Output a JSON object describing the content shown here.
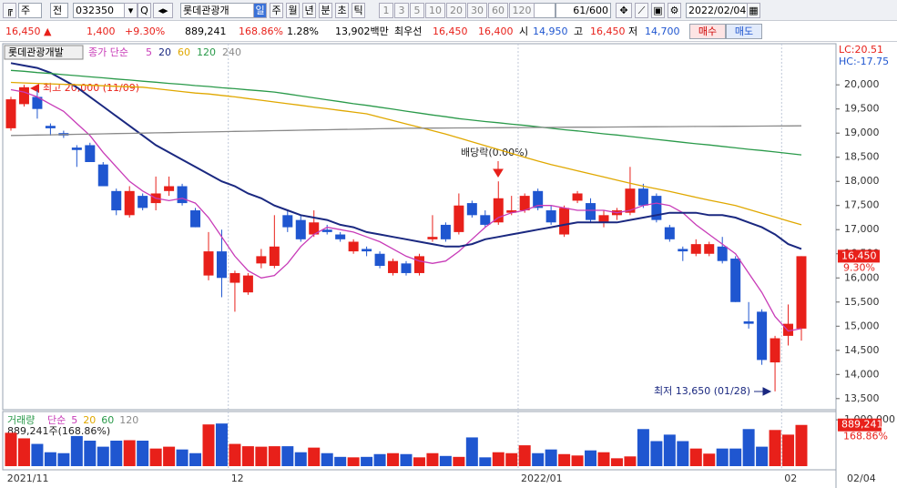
{
  "toolbar": {
    "market": "주",
    "type": "전",
    "code": "032350",
    "name": "롯데관광개",
    "periods": [
      "일",
      "주",
      "월",
      "년",
      "분",
      "초",
      "틱"
    ],
    "minutes": [
      "1",
      "3",
      "5",
      "10",
      "20",
      "30",
      "60",
      "120"
    ],
    "count": "61/600",
    "date": "2022/02/04"
  },
  "info": {
    "price": "16,450 ▲",
    "change": "1,400",
    "change_pct": "+9.30%",
    "volume": "889,241",
    "volume_ratio": "168.86%",
    "turnover": "1.28%",
    "amount": "13,902백만",
    "best_label": "최우선",
    "ask": "16,450",
    "bid": "16,400",
    "open_label": "시",
    "open": "14,950",
    "high_label": "고",
    "high": "16,450",
    "low_label": "저",
    "low": "14,700",
    "buy": "매수",
    "sell": "매도"
  },
  "chart_data": [
    {
      "type": "candlestick",
      "title": "롯데관광개발",
      "ma_label": "종가 단순",
      "lc": "LC:20.51",
      "hc": "HC:-17.75",
      "last_label": "16,450",
      "last_pct": "9.30%",
      "up_color": "#e8201a",
      "down_color": "#1f56d0",
      "annotations": [
        "최고 20,000 (11/09)",
        "배당락(0.00%)",
        "최저 13,650 (01/28)"
      ],
      "categories": [
        "2021/11",
        null,
        null,
        null,
        null,
        null,
        null,
        null,
        null,
        null,
        null,
        null,
        null,
        null,
        null,
        null,
        null,
        "12",
        null,
        null,
        null,
        null,
        null,
        null,
        null,
        null,
        null,
        null,
        null,
        null,
        null,
        null,
        null,
        null,
        null,
        null,
        null,
        null,
        null,
        "2022/01",
        null,
        null,
        null,
        null,
        null,
        null,
        null,
        null,
        null,
        null,
        null,
        null,
        null,
        null,
        null,
        null,
        null,
        null,
        null,
        "02",
        null
      ],
      "last_date": "02/04",
      "open": [
        19100,
        19600,
        19750,
        19150,
        19000,
        18700,
        18750,
        18350,
        17800,
        17300,
        17700,
        17550,
        17800,
        17900,
        17400,
        16050,
        16550,
        15900,
        15700,
        16300,
        16250,
        17300,
        17200,
        16900,
        17000,
        16900,
        16550,
        16600,
        16500,
        16100,
        16300,
        16100,
        16800,
        17100,
        16950,
        17550,
        17300,
        17150,
        17350,
        17400,
        17800,
        17400,
        16900,
        17600,
        17550,
        17150,
        17300,
        17350,
        17850,
        17700,
        17050,
        16600,
        16500,
        16500,
        16650,
        16400,
        15100,
        15300,
        14250,
        14800,
        14950
      ],
      "high": [
        19750,
        20000,
        19900,
        19200,
        19050,
        18750,
        18800,
        18400,
        17850,
        17900,
        17750,
        18100,
        18100,
        17950,
        17450,
        16950,
        17000,
        16150,
        16100,
        16600,
        17300,
        17400,
        17300,
        17400,
        17100,
        16950,
        16800,
        16650,
        16550,
        16400,
        16350,
        16500,
        17300,
        17150,
        17750,
        17600,
        17400,
        18000,
        17700,
        17750,
        17850,
        17500,
        17500,
        17800,
        17650,
        17400,
        17450,
        18300,
        17950,
        17750,
        17100,
        16650,
        16800,
        16750,
        16850,
        16450,
        15500,
        15350,
        14800,
        15450,
        16450
      ],
      "low": [
        19050,
        19550,
        19300,
        18950,
        18900,
        18300,
        18400,
        17900,
        17300,
        17250,
        17400,
        17400,
        17700,
        17500,
        17050,
        15950,
        15600,
        15300,
        15650,
        16200,
        16200,
        16950,
        16750,
        16850,
        16900,
        16750,
        16500,
        16450,
        16200,
        16050,
        16050,
        16050,
        16750,
        16750,
        16900,
        17250,
        17050,
        17100,
        17300,
        17350,
        17400,
        17100,
        16850,
        17550,
        17150,
        17050,
        17200,
        17300,
        17450,
        17150,
        16750,
        16350,
        16450,
        16450,
        16300,
        15500,
        14950,
        14200,
        13650,
        14600,
        14700
      ],
      "close": [
        19700,
        19950,
        19500,
        19100,
        18950,
        18650,
        18400,
        17900,
        17400,
        17800,
        17450,
        17750,
        17900,
        17550,
        17050,
        16550,
        16000,
        16100,
        16050,
        16450,
        16650,
        17050,
        16800,
        17150,
        16950,
        16800,
        16750,
        16550,
        16250,
        16350,
        16100,
        16450,
        16850,
        16800,
        17500,
        17300,
        17100,
        17650,
        17400,
        17700,
        17450,
        17150,
        17450,
        17750,
        17200,
        17300,
        17400,
        17850,
        17500,
        17200,
        16800,
        16550,
        16700,
        16700,
        16350,
        15500,
        15050,
        14300,
        14750,
        15050,
        16450
      ],
      "series": [
        {
          "name": "5",
          "color": "#c83cb8",
          "values": [
            19900,
            19850,
            19750,
            19600,
            19450,
            19200,
            18950,
            18600,
            18300,
            18000,
            17800,
            17650,
            17600,
            17650,
            17550,
            17250,
            16850,
            16450,
            16150,
            16000,
            16050,
            16300,
            16650,
            16900,
            17050,
            17000,
            16950,
            16850,
            16750,
            16600,
            16450,
            16350,
            16300,
            16350,
            16550,
            16800,
            17050,
            17250,
            17350,
            17400,
            17500,
            17500,
            17450,
            17400,
            17400,
            17400,
            17350,
            17400,
            17500,
            17550,
            17500,
            17350,
            17100,
            16900,
            16700,
            16500,
            16100,
            15700,
            15200,
            14900,
            14950
          ]
        },
        {
          "name": "20",
          "color": "#1a2880",
          "values": [
            20450,
            20400,
            20350,
            20250,
            20100,
            19950,
            19750,
            19550,
            19350,
            19150,
            18950,
            18750,
            18600,
            18450,
            18300,
            18150,
            18000,
            17900,
            17750,
            17650,
            17500,
            17400,
            17300,
            17250,
            17200,
            17100,
            17050,
            16950,
            16900,
            16850,
            16800,
            16750,
            16700,
            16650,
            16650,
            16700,
            16800,
            16850,
            16900,
            16950,
            17000,
            17050,
            17100,
            17150,
            17150,
            17150,
            17150,
            17200,
            17250,
            17300,
            17350,
            17350,
            17350,
            17300,
            17300,
            17250,
            17150,
            17050,
            16900,
            16700,
            16600
          ]
        },
        {
          "name": "60",
          "color": "#e0a800",
          "values": [
            20050,
            20040,
            20030,
            20020,
            20010,
            20000,
            19990,
            19980,
            19970,
            19960,
            19950,
            19920,
            19890,
            19860,
            19830,
            19810,
            19780,
            19750,
            19715,
            19680,
            19645,
            19610,
            19575,
            19540,
            19505,
            19470,
            19435,
            19400,
            19330,
            19260,
            19190,
            19120,
            19050,
            18980,
            18900,
            18820,
            18740,
            18660,
            18580,
            18500,
            18420,
            18350,
            18285,
            18220,
            18155,
            18090,
            18025,
            17960,
            17900,
            17845,
            17790,
            17730,
            17670,
            17610,
            17555,
            17500,
            17420,
            17340,
            17260,
            17180,
            17100
          ]
        },
        {
          "name": "120",
          "color": "#2a9a4a",
          "values": [
            20300,
            20280,
            20255,
            20235,
            20210,
            20190,
            20165,
            20145,
            20120,
            20100,
            20075,
            20055,
            20030,
            20010,
            19985,
            19965,
            19940,
            19920,
            19895,
            19875,
            19850,
            19810,
            19770,
            19730,
            19690,
            19650,
            19610,
            19575,
            19535,
            19495,
            19455,
            19415,
            19375,
            19340,
            19300,
            19270,
            19240,
            19215,
            19185,
            19160,
            19130,
            19100,
            19070,
            19045,
            19015,
            18985,
            18960,
            18930,
            18900,
            18870,
            18840,
            18810,
            18780,
            18755,
            18725,
            18695,
            18665,
            18640,
            18610,
            18580,
            18550
          ]
        },
        {
          "name": "240",
          "color": "#8a8a8a",
          "values": [
            18950,
            18955,
            18960,
            18965,
            18970,
            18975,
            18980,
            18985,
            18990,
            18995,
            19000,
            19005,
            19010,
            19015,
            19020,
            19025,
            19030,
            19035,
            19040,
            19045,
            19050,
            19055,
            19060,
            19065,
            19070,
            19075,
            19080,
            19085,
            19090,
            19095,
            19100,
            19102,
            19103,
            19105,
            19107,
            19108,
            19110,
            19112,
            19113,
            19115,
            19117,
            19118,
            19120,
            19122,
            19123,
            19125,
            19127,
            19128,
            19130,
            19132,
            19133,
            19135,
            19137,
            19138,
            19140,
            19142,
            19143,
            19145,
            19147,
            19148,
            19150
          ]
        }
      ],
      "ylim": [
        13270,
        20720
      ],
      "yticks": [
        {
          "value": 13500,
          "label": "13,500"
        },
        {
          "value": 14000,
          "label": "14,000"
        },
        {
          "value": 14500,
          "label": "14,500"
        },
        {
          "value": 15000,
          "label": "15,000"
        },
        {
          "value": 15500,
          "label": "15,500"
        },
        {
          "value": 16000,
          "label": "16,000"
        },
        {
          "value": 16500,
          "label": "16,500"
        },
        {
          "value": 17000,
          "label": "17,000"
        },
        {
          "value": 17500,
          "label": "17,500"
        },
        {
          "value": 18000,
          "label": "18,000"
        },
        {
          "value": 18500,
          "label": "18,500"
        },
        {
          "value": 19000,
          "label": "19,000"
        },
        {
          "value": 19500,
          "label": "19,500"
        },
        {
          "value": 20000,
          "label": "20,000"
        }
      ]
    },
    {
      "type": "bar",
      "title": "거래량",
      "legend": [
        "단순",
        "5",
        "20",
        "60",
        "120"
      ],
      "legend_colors": [
        "#c83cb8",
        "#c83cb8",
        "#e0a800",
        "#2a9a4a",
        "#8a8a8a"
      ],
      "summary": "889,241주(168.86%)",
      "last_label": "889,241",
      "last_pct": "168.86%",
      "values": [
        720000,
        600000,
        480000,
        300000,
        280000,
        650000,
        550000,
        420000,
        550000,
        560000,
        550000,
        380000,
        420000,
        360000,
        280000,
        900000,
        920000,
        480000,
        430000,
        420000,
        430000,
        430000,
        300000,
        400000,
        280000,
        200000,
        190000,
        200000,
        260000,
        280000,
        260000,
        190000,
        280000,
        220000,
        200000,
        620000,
        190000,
        300000,
        280000,
        450000,
        280000,
        360000,
        260000,
        230000,
        340000,
        300000,
        170000,
        210000,
        800000,
        540000,
        680000,
        540000,
        380000,
        270000,
        380000,
        380000,
        800000,
        420000,
        780000,
        680000,
        889241
      ],
      "ylim": [
        0,
        1100000
      ],
      "yticks": [
        {
          "value": 1000000,
          "label": "1,000,000"
        }
      ]
    }
  ]
}
